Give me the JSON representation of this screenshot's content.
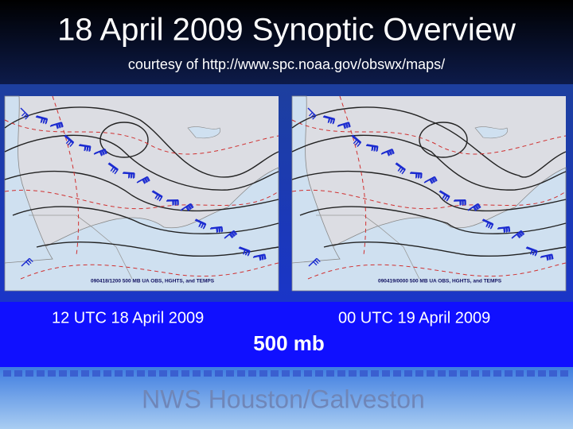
{
  "header": {
    "title": "18 April 2009 Synoptic Overview",
    "subtitle": "courtesy of http://www.spc.noaa.gov/obswx/maps/"
  },
  "maps": [
    {
      "caption": "090418/1200 500 MB UA OBS, HGHTS, and TEMPS",
      "time_label": "12 UTC 18 April 2009"
    },
    {
      "caption": "090419/0000 500 MB UA OBS, HGHTS, and TEMPS",
      "time_label": "00 UTC 19 April 2009"
    }
  ],
  "level": "500 mb",
  "footer": "NWS Houston/Galveston"
}
